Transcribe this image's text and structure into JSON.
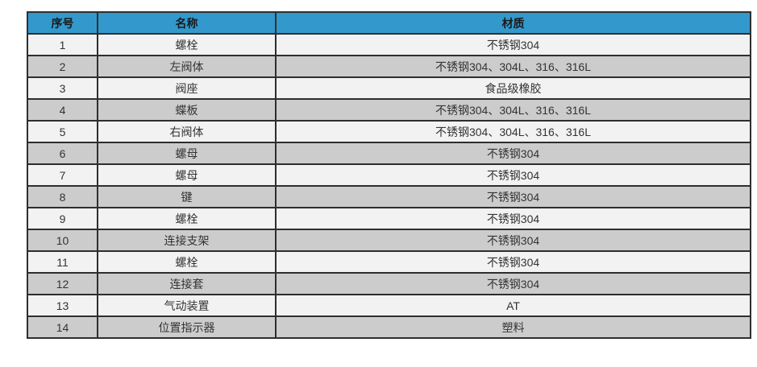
{
  "table": {
    "columns": [
      {
        "key": "index",
        "label": "序号"
      },
      {
        "key": "name",
        "label": "名称"
      },
      {
        "key": "material",
        "label": "材质"
      }
    ],
    "rows": [
      {
        "index": "1",
        "name": "螺栓",
        "material": "不锈钢304"
      },
      {
        "index": "2",
        "name": "左阀体",
        "material": "不锈钢304、304L、316、316L"
      },
      {
        "index": "3",
        "name": "阀座",
        "material": "食品级橡胶"
      },
      {
        "index": "4",
        "name": "蝶板",
        "material": "不锈钢304、304L、316、316L"
      },
      {
        "index": "5",
        "name": "右阀体",
        "material": "不锈钢304、304L、316、316L"
      },
      {
        "index": "6",
        "name": "螺母",
        "material": "不锈钢304"
      },
      {
        "index": "7",
        "name": "螺母",
        "material": "不锈钢304"
      },
      {
        "index": "8",
        "name": "键",
        "material": "不锈钢304"
      },
      {
        "index": "9",
        "name": "螺栓",
        "material": "不锈钢304"
      },
      {
        "index": "10",
        "name": "连接支架",
        "material": "不锈钢304"
      },
      {
        "index": "11",
        "name": "螺栓",
        "material": "不锈钢304"
      },
      {
        "index": "12",
        "name": "连接套",
        "material": "不锈钢304"
      },
      {
        "index": "13",
        "name": "气动装置",
        "material": "AT"
      },
      {
        "index": "14",
        "name": "位置指示器",
        "material": "塑料"
      }
    ]
  },
  "colors": {
    "header_bg": "#3398cc",
    "row_light": "#f2f2f2",
    "row_dark": "#cccccc",
    "border": "#2e2e2e",
    "header_text": "#1a1a1a",
    "cell_text": "#333333"
  }
}
